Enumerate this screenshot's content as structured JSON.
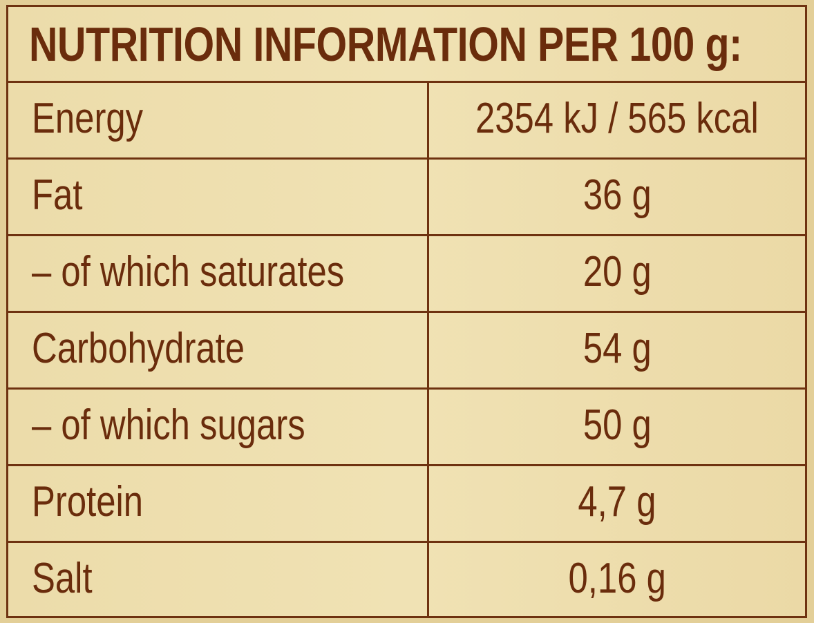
{
  "title": "NUTRITION INFORMATION PER 100 g:",
  "rows": [
    {
      "label": "Energy",
      "value": "2354 kJ / 565 kcal"
    },
    {
      "label": "Fat",
      "value": "36 g"
    },
    {
      "label": "– of which saturates",
      "value": "20 g"
    },
    {
      "label": "Carbohydrate",
      "value": "54 g"
    },
    {
      "label": "– of which sugars",
      "value": "50 g"
    },
    {
      "label": "Protein",
      "value": "4,7 g"
    },
    {
      "label": "Salt",
      "value": "0,16 g"
    }
  ],
  "colors": {
    "background": "#ecdcaa",
    "ink": "#6a2c0c"
  }
}
